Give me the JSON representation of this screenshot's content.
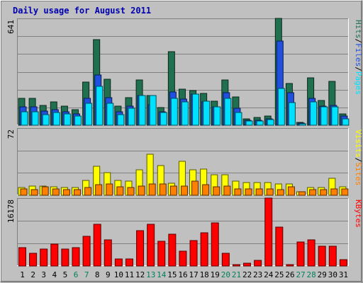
{
  "chart_data": [
    {
      "type": "bar",
      "title": "Daily usage for August 2011",
      "categories": [
        "1",
        "2",
        "3",
        "4",
        "5",
        "6",
        "7",
        "8",
        "9",
        "10",
        "11",
        "12",
        "13",
        "14",
        "15",
        "16",
        "17",
        "18",
        "19",
        "20",
        "21",
        "22",
        "23",
        "24",
        "25",
        "26",
        "27",
        "28",
        "29",
        "30",
        "31"
      ],
      "weekend_days": [
        "6",
        "7",
        "13",
        "14",
        "20",
        "21",
        "27",
        "28"
      ],
      "ylabel_max": "641",
      "ylim": [
        0,
        641
      ],
      "legend": [
        "Pages",
        "/",
        "Files",
        "/",
        "Hits"
      ],
      "series": [
        {
          "name": "Hits",
          "color": "#207050",
          "values": [
            160,
            160,
            120,
            140,
            115,
            95,
            260,
            515,
            275,
            115,
            165,
            270,
            180,
            105,
            440,
            215,
            210,
            190,
            145,
            270,
            170,
            40,
            45,
            55,
            641,
            250,
            15,
            285,
            150,
            265,
            70
          ]
        },
        {
          "name": "Files",
          "color": "#2050e0",
          "values": [
            110,
            110,
            85,
            95,
            80,
            70,
            160,
            300,
            165,
            80,
            115,
            180,
            125,
            80,
            200,
            155,
            185,
            140,
            110,
            195,
            100,
            30,
            30,
            40,
            505,
            195,
            12,
            160,
            115,
            120,
            55
          ]
        },
        {
          "name": "Pages",
          "color": "#00e0ff",
          "values": [
            80,
            80,
            65,
            75,
            70,
            55,
            130,
            235,
            130,
            65,
            100,
            180,
            180,
            75,
            160,
            140,
            185,
            145,
            110,
            160,
            75,
            25,
            25,
            35,
            220,
            135,
            8,
            140,
            110,
            110,
            40
          ]
        }
      ]
    },
    {
      "type": "bar",
      "ylabel_max": "72",
      "ylim": [
        0,
        72
      ],
      "legend": [
        "Sites",
        "/",
        "Visits"
      ],
      "series": [
        {
          "name": "Visits",
          "color": "#ffff00",
          "values": [
            8,
            10,
            10,
            9,
            8,
            8,
            16,
            31,
            24,
            16,
            15,
            27,
            44,
            32,
            13,
            36,
            27,
            28,
            22,
            22,
            15,
            14,
            14,
            14,
            12,
            12,
            4,
            8,
            8,
            18,
            9
          ]
        },
        {
          "name": "Sites",
          "color": "#ff8000",
          "values": [
            7,
            6,
            9,
            7,
            6,
            6,
            8,
            11,
            12,
            9,
            8,
            10,
            12,
            12,
            10,
            10,
            15,
            11,
            9,
            10,
            7,
            7,
            7,
            7,
            6,
            9,
            4,
            6,
            6,
            7,
            7
          ]
        }
      ]
    },
    {
      "type": "bar",
      "ylabel_max": "16178",
      "ylim": [
        0,
        16178
      ],
      "legend": [
        "KBytes"
      ],
      "series": [
        {
          "name": "KBytes",
          "color": "#ff0000",
          "values": [
            4300,
            3100,
            4100,
            5200,
            4100,
            4300,
            7000,
            9900,
            6300,
            1750,
            1750,
            8500,
            9900,
            5900,
            7600,
            3500,
            6100,
            8000,
            10200,
            3000,
            400,
            600,
            1400,
            16178,
            9200,
            400,
            5700,
            6200,
            4700,
            4700,
            1600
          ]
        }
      ]
    }
  ]
}
